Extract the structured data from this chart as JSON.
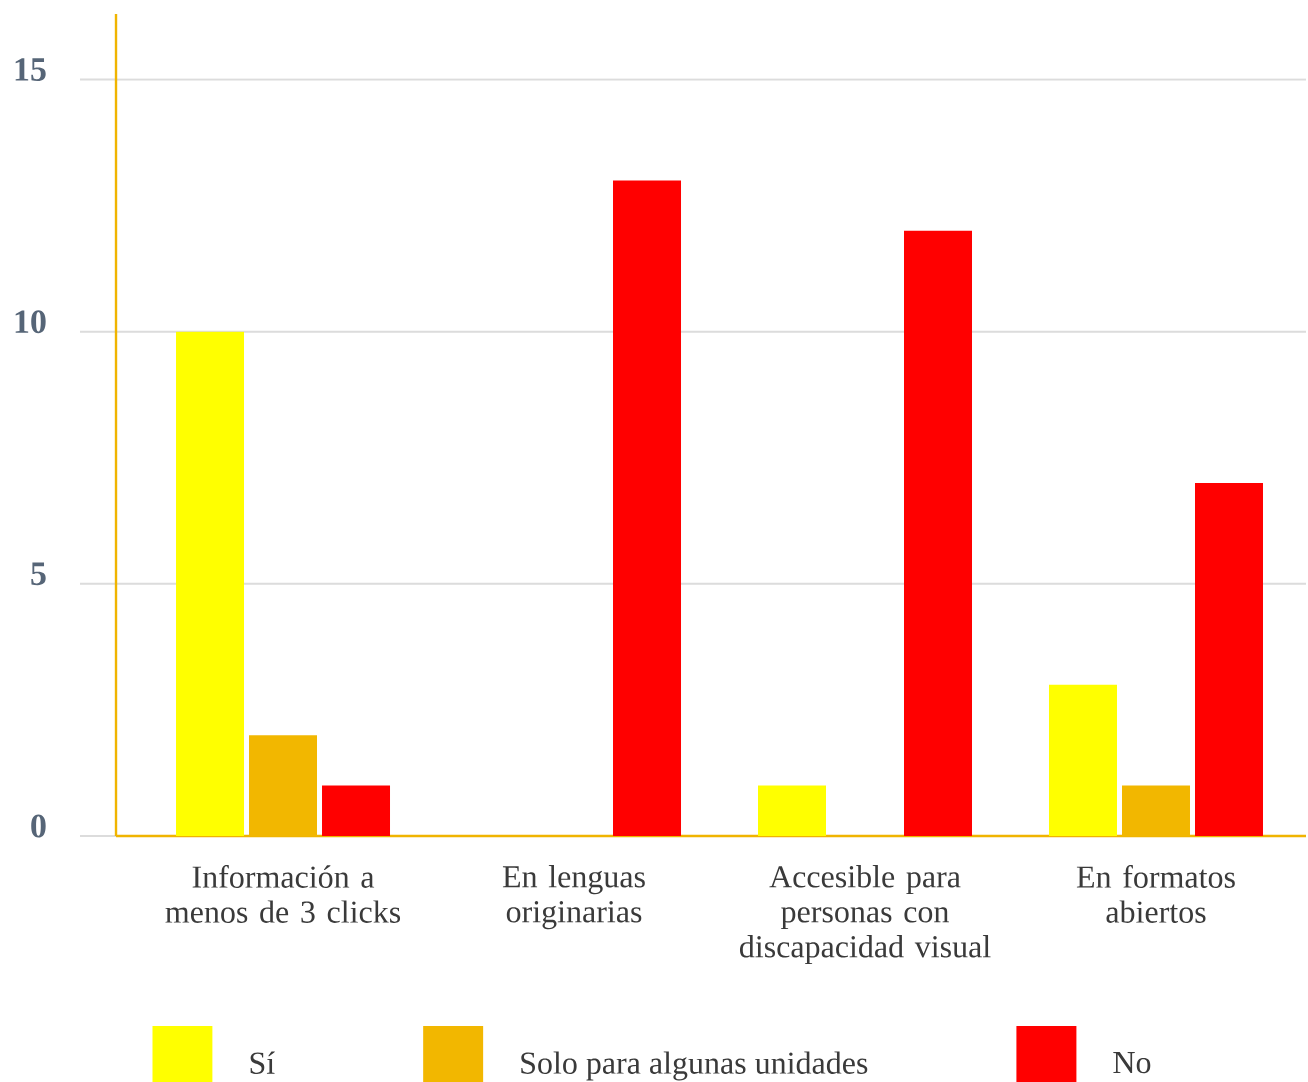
{
  "chart_data": {
    "type": "bar",
    "categories": [
      "Información a menos de 3 clicks",
      "En lenguas originarias",
      "Accesible para personas con discapacidad visual",
      "En formatos abiertos"
    ],
    "series": [
      {
        "name": "Sí",
        "color": "#ffff00",
        "values": [
          10,
          0,
          1,
          3
        ]
      },
      {
        "name": "Solo para algunas unidades",
        "color": "#f2b700",
        "values": [
          2,
          0,
          0,
          1
        ]
      },
      {
        "name": "No",
        "color": "#ff0000",
        "values": [
          1,
          13,
          12,
          7
        ]
      }
    ],
    "ylim": [
      0,
      16.3
    ],
    "yticks": [
      0,
      5,
      10,
      15
    ],
    "grid": "y",
    "legend": "bottom"
  }
}
